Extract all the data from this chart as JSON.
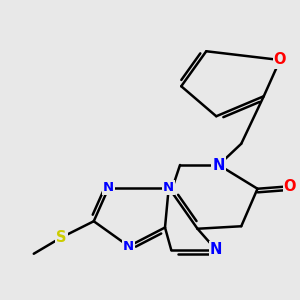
{
  "background_color": "#e8e8e8",
  "bond_color": "#000000",
  "bond_width": 1.8,
  "atom_colors": {
    "N": "#0000ff",
    "O": "#ff0000",
    "S": "#cccc00",
    "C": "#000000"
  },
  "font_size": 9.5,
  "fig_width": 3.0,
  "fig_height": 3.0,
  "dpi": 100,
  "xlim": [
    0,
    10
  ],
  "ylim": [
    0,
    10
  ]
}
